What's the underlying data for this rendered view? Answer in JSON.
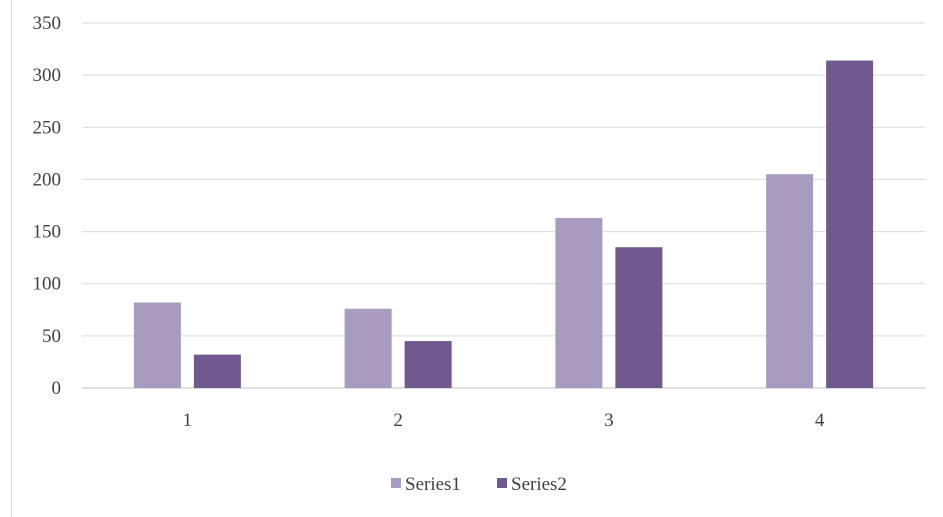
{
  "chart_data": {
    "type": "bar",
    "categories": [
      "1",
      "2",
      "3",
      "4"
    ],
    "series": [
      {
        "name": "Series1",
        "color": "#a99bc0",
        "values": [
          82,
          76,
          163,
          205
        ]
      },
      {
        "name": "Series2",
        "color": "#71598f",
        "values": [
          32,
          45,
          135,
          314
        ]
      }
    ],
    "ylim": [
      0,
      350
    ],
    "yticks": [
      0,
      50,
      100,
      150,
      200,
      250,
      300,
      350
    ],
    "grid": true,
    "legend": "bottom-center"
  }
}
